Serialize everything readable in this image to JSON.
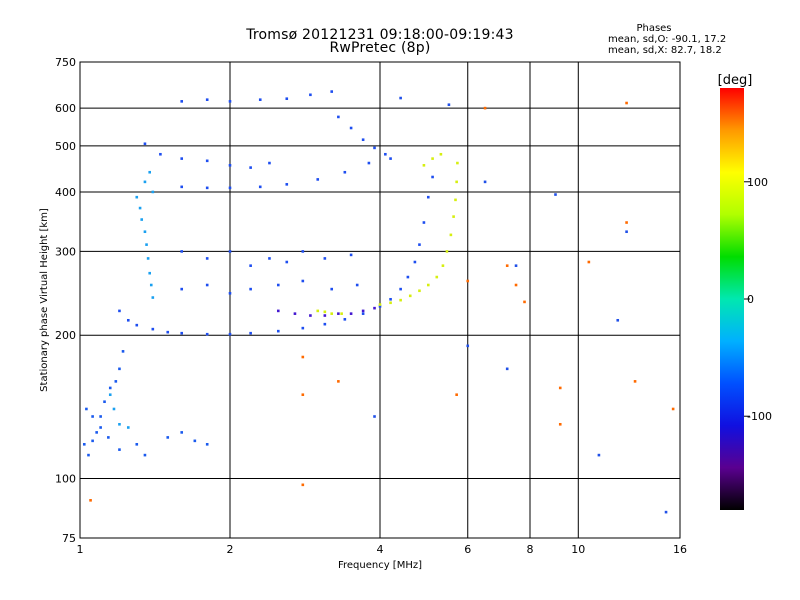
{
  "header": {
    "title_line1": "Tromsø 20121231 09:18:00-09:19:43",
    "title_line2": "RwPretec (8p)"
  },
  "phase_stats": {
    "heading": "Phases",
    "o_mode": "mean, sd,O: -90.1, 17.2",
    "x_mode": "mean, sd,X: 82.7, 18.2"
  },
  "chart_data": {
    "type": "scatter",
    "xlabel": "Frequency [MHz]",
    "ylabel": "Stationary phase Virtual Height [km]",
    "x_scale": "log",
    "y_scale": "log",
    "xlim": [
      1,
      16
    ],
    "ylim": [
      75,
      750
    ],
    "x_ticks": [
      1,
      2,
      4,
      6,
      8,
      10,
      16
    ],
    "y_ticks": [
      75,
      100,
      200,
      300,
      400,
      500,
      600,
      750
    ],
    "x_gridlines": [
      2,
      4,
      6,
      8,
      10
    ],
    "y_gridlines": [
      100,
      200,
      300,
      400,
      500,
      600
    ],
    "colorbar": {
      "label": "[deg]",
      "range": [
        -180,
        180
      ],
      "ticks": [
        -100,
        0,
        100
      ],
      "colors": [
        "#000000",
        "#5a0090",
        "#1010e0",
        "#0050ff",
        "#00b0ff",
        "#00e8b0",
        "#00dd00",
        "#b0ff00",
        "#ffff00",
        "#ff9900",
        "#ff0000"
      ]
    },
    "series": [
      {
        "mode": "O",
        "color": "#1e4ef0",
        "points": [
          [
            1.2,
            225
          ],
          [
            1.25,
            215
          ],
          [
            1.3,
            210
          ],
          [
            1.4,
            206
          ],
          [
            1.5,
            203
          ],
          [
            1.6,
            202
          ],
          [
            1.8,
            201
          ],
          [
            2.0,
            201
          ],
          [
            2.2,
            202
          ],
          [
            2.5,
            204
          ],
          [
            2.8,
            207
          ],
          [
            3.1,
            211
          ],
          [
            3.4,
            216
          ],
          [
            3.7,
            222
          ],
          [
            4.0,
            230
          ],
          [
            4.2,
            238
          ],
          [
            4.4,
            250
          ],
          [
            4.55,
            265
          ],
          [
            4.7,
            285
          ],
          [
            4.8,
            310
          ],
          [
            4.9,
            345
          ],
          [
            5.0,
            390
          ],
          [
            5.1,
            430
          ],
          [
            1.35,
            505
          ],
          [
            1.45,
            480
          ],
          [
            1.6,
            470
          ],
          [
            1.8,
            465
          ],
          [
            2.0,
            455
          ],
          [
            2.2,
            450
          ],
          [
            2.4,
            460
          ],
          [
            1.6,
            410
          ],
          [
            1.8,
            408
          ],
          [
            2.0,
            408
          ],
          [
            2.3,
            410
          ],
          [
            2.6,
            415
          ],
          [
            3.0,
            425
          ],
          [
            3.4,
            440
          ],
          [
            3.8,
            460
          ],
          [
            4.1,
            480
          ],
          [
            1.6,
            620
          ],
          [
            1.8,
            625
          ],
          [
            2.0,
            620
          ],
          [
            2.3,
            625
          ],
          [
            2.6,
            628
          ],
          [
            2.9,
            640
          ],
          [
            3.2,
            650
          ],
          [
            1.6,
            300
          ],
          [
            1.8,
            290
          ],
          [
            2.0,
            300
          ],
          [
            2.2,
            280
          ],
          [
            2.4,
            290
          ],
          [
            2.6,
            285
          ],
          [
            2.8,
            300
          ],
          [
            3.1,
            290
          ],
          [
            3.5,
            295
          ],
          [
            1.6,
            250
          ],
          [
            1.8,
            255
          ],
          [
            2.0,
            245
          ],
          [
            2.2,
            250
          ],
          [
            2.5,
            255
          ],
          [
            2.8,
            260
          ],
          [
            3.2,
            250
          ],
          [
            3.6,
            255
          ],
          [
            3.3,
            575
          ],
          [
            3.5,
            545
          ],
          [
            3.7,
            515
          ],
          [
            3.9,
            495
          ],
          [
            4.2,
            470
          ]
        ]
      },
      {
        "mode": "O-low",
        "color": "#1a5aee",
        "points": [
          [
            1.02,
            118
          ],
          [
            1.04,
            112
          ],
          [
            1.06,
            120
          ],
          [
            1.08,
            125
          ],
          [
            1.1,
            135
          ],
          [
            1.12,
            145
          ],
          [
            1.15,
            155
          ],
          [
            1.18,
            160
          ],
          [
            1.2,
            170
          ],
          [
            1.22,
            185
          ],
          [
            1.03,
            140
          ],
          [
            1.06,
            135
          ],
          [
            1.1,
            128
          ],
          [
            1.14,
            122
          ],
          [
            1.2,
            115
          ],
          [
            1.3,
            118
          ],
          [
            1.35,
            112
          ],
          [
            1.5,
            122
          ],
          [
            1.6,
            125
          ],
          [
            1.7,
            120
          ],
          [
            1.8,
            118
          ]
        ]
      },
      {
        "mode": "O-cyan",
        "color": "#1aa0f0",
        "points": [
          [
            1.3,
            390
          ],
          [
            1.32,
            370
          ],
          [
            1.33,
            350
          ],
          [
            1.35,
            330
          ],
          [
            1.36,
            310
          ],
          [
            1.37,
            290
          ],
          [
            1.38,
            270
          ],
          [
            1.39,
            255
          ],
          [
            1.4,
            240
          ],
          [
            1.35,
            420
          ],
          [
            1.38,
            440
          ],
          [
            1.4,
            400
          ],
          [
            1.15,
            150
          ],
          [
            1.17,
            140
          ],
          [
            1.2,
            130
          ],
          [
            1.25,
            128
          ]
        ]
      },
      {
        "mode": "X",
        "color": "#d6ef10",
        "points": [
          [
            4.0,
            232
          ],
          [
            4.2,
            234
          ],
          [
            4.4,
            237
          ],
          [
            4.6,
            242
          ],
          [
            4.8,
            248
          ],
          [
            5.0,
            255
          ],
          [
            5.2,
            265
          ],
          [
            5.35,
            280
          ],
          [
            5.45,
            300
          ],
          [
            5.55,
            325
          ],
          [
            5.62,
            355
          ],
          [
            5.67,
            385
          ],
          [
            5.7,
            420
          ],
          [
            5.72,
            460
          ],
          [
            4.9,
            455
          ],
          [
            5.1,
            470
          ],
          [
            5.3,
            480
          ],
          [
            3.0,
            225
          ],
          [
            3.1,
            224
          ],
          [
            3.2,
            222
          ],
          [
            3.35,
            222
          ]
        ]
      },
      {
        "mode": "O-violet",
        "color": "#4418d0",
        "points": [
          [
            2.5,
            225
          ],
          [
            2.7,
            222
          ],
          [
            2.9,
            220
          ],
          [
            3.1,
            220
          ],
          [
            3.3,
            222
          ],
          [
            3.5,
            222
          ],
          [
            3.7,
            225
          ],
          [
            3.9,
            228
          ]
        ]
      },
      {
        "mode": "scattered",
        "color": "#ff6a00",
        "points": [
          [
            6.5,
            600
          ],
          [
            9.2,
            155
          ],
          [
            9.2,
            130
          ],
          [
            12.5,
            615
          ],
          [
            12.5,
            345
          ],
          [
            7.5,
            255
          ],
          [
            7.8,
            235
          ],
          [
            10.5,
            285
          ],
          [
            13.0,
            160
          ],
          [
            15.5,
            140
          ],
          [
            2.8,
            180
          ],
          [
            2.8,
            150
          ],
          [
            1.05,
            90
          ],
          [
            5.7,
            150
          ],
          [
            2.8,
            97
          ],
          [
            3.3,
            160
          ],
          [
            6.0,
            260
          ],
          [
            7.2,
            280
          ]
        ]
      },
      {
        "mode": "scattered-blue",
        "color": "#2050e8",
        "points": [
          [
            7.5,
            280
          ],
          [
            11.0,
            112
          ],
          [
            12.0,
            215
          ],
          [
            9.0,
            395
          ],
          [
            6.5,
            420
          ],
          [
            3.9,
            135
          ],
          [
            15.0,
            85
          ],
          [
            4.4,
            630
          ],
          [
            5.5,
            610
          ],
          [
            7.2,
            170
          ],
          [
            12.5,
            330
          ],
          [
            6.0,
            190
          ]
        ]
      }
    ]
  }
}
